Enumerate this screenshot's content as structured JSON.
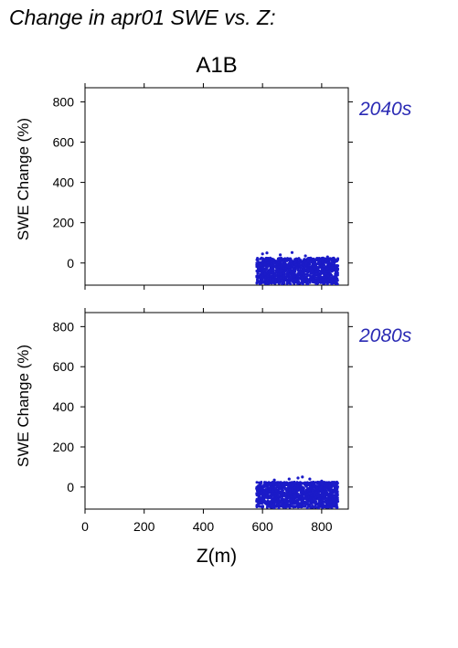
{
  "page_title": "Change in apr01 SWE vs. Z:",
  "scenario": "A1B",
  "colors": {
    "points": "#1b1bc8",
    "period_label": "#2a2ab4",
    "axis": "#000000"
  },
  "chart_data": [
    {
      "type": "scatter",
      "title": "A1B",
      "panel_label": "2040s",
      "xlabel": "",
      "ylabel": "SWE Change (%)",
      "xlim": [
        0,
        890
      ],
      "ylim": [
        -110,
        870
      ],
      "x_ticks": [
        0,
        200,
        400,
        600,
        800
      ],
      "y_ticks": [
        0,
        200,
        400,
        600,
        800
      ],
      "x_tick_labels_shown": false,
      "grid": false,
      "series": [
        {
          "x_range": [
            580,
            855
          ],
          "y_range": [
            -105,
            25
          ],
          "count": 1400,
          "outliers": [
            [
              600,
              45
            ],
            [
              615,
              50
            ],
            [
              660,
              40
            ],
            [
              700,
              52
            ],
            [
              745,
              35
            ],
            [
              820,
              30
            ]
          ]
        }
      ]
    },
    {
      "type": "scatter",
      "panel_label": "2080s",
      "xlabel": "Z(m)",
      "ylabel": "SWE Change (%)",
      "xlim": [
        0,
        890
      ],
      "ylim": [
        -110,
        870
      ],
      "x_ticks": [
        0,
        200,
        400,
        600,
        800
      ],
      "y_ticks": [
        0,
        200,
        400,
        600,
        800
      ],
      "x_tick_labels_shown": true,
      "grid": false,
      "series": [
        {
          "x_range": [
            580,
            855
          ],
          "y_range": [
            -105,
            25
          ],
          "count": 1400,
          "outliers": [
            [
              640,
              35
            ],
            [
              690,
              40
            ],
            [
              720,
              45
            ],
            [
              735,
              50
            ],
            [
              760,
              40
            ],
            [
              800,
              30
            ]
          ]
        }
      ]
    }
  ]
}
